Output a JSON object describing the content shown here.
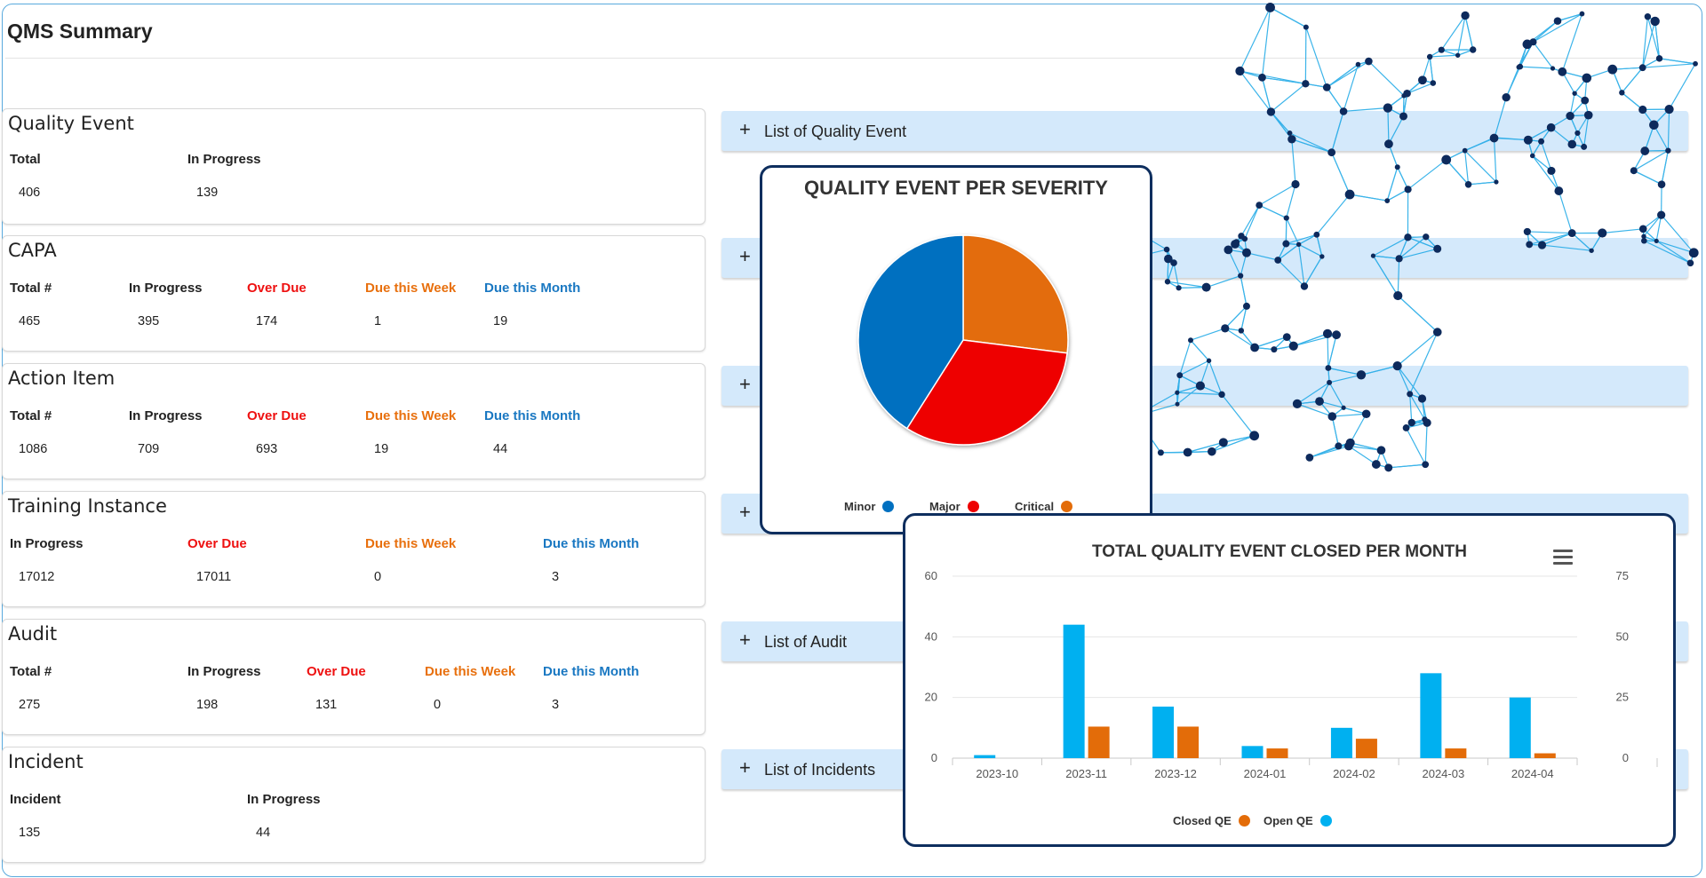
{
  "page": {
    "title": "QMS Summary"
  },
  "cards": {
    "quality_event": {
      "title": "Quality Event",
      "columns": [
        {
          "label": "Total",
          "value": "406"
        },
        {
          "label": "In Progress",
          "value": "139"
        }
      ]
    },
    "capa": {
      "title": "CAPA",
      "columns": [
        {
          "label": "Total #",
          "value": "465"
        },
        {
          "label": "In Progress",
          "value": "395"
        },
        {
          "label": "Over Due",
          "value": "174"
        },
        {
          "label": "Due this Week",
          "value": "1"
        },
        {
          "label": "Due this Month",
          "value": "19"
        }
      ]
    },
    "action_item": {
      "title": "Action Item",
      "columns": [
        {
          "label": "Total #",
          "value": "1086"
        },
        {
          "label": "In Progress",
          "value": "709"
        },
        {
          "label": "Over Due",
          "value": "693"
        },
        {
          "label": "Due this Week",
          "value": "19"
        },
        {
          "label": "Due this Month",
          "value": "44"
        }
      ]
    },
    "training": {
      "title": "Training Instance",
      "columns": [
        {
          "label": "In Progress",
          "value": "17012"
        },
        {
          "label": "Over Due",
          "value": "17011"
        },
        {
          "label": "Due this Week",
          "value": "0"
        },
        {
          "label": "Due this Month",
          "value": "3"
        }
      ]
    },
    "audit": {
      "title": "Audit",
      "columns": [
        {
          "label": "Total #",
          "value": "275"
        },
        {
          "label": "In Progress",
          "value": "198"
        },
        {
          "label": "Over Due",
          "value": "131"
        },
        {
          "label": "Due this Week",
          "value": "0"
        },
        {
          "label": "Due this Month",
          "value": "3"
        }
      ]
    },
    "incident": {
      "title": "Incident",
      "columns": [
        {
          "label": "Incident",
          "value": "135"
        },
        {
          "label": "In Progress",
          "value": "44"
        }
      ]
    }
  },
  "accordions": [
    {
      "label": "List of Quality Event"
    },
    {
      "label": ""
    },
    {
      "label": ""
    },
    {
      "label": ""
    },
    {
      "label": "List of Audit"
    },
    {
      "label": "List of Incidents"
    }
  ],
  "accordion_icon": "plus-icon",
  "header_colors": {
    "over_due": "#ee1111",
    "due_week": "#e8700e",
    "due_month": "#1a78c2"
  },
  "chart_data": [
    {
      "type": "pie",
      "title": "QUALITY EVENT PER SEVERITY",
      "slices": [
        {
          "name": "Minor",
          "value": 41,
          "color": "#0070c0"
        },
        {
          "name": "Major",
          "value": 32,
          "color": "#ee0000"
        },
        {
          "name": "Critical",
          "value": 27,
          "color": "#e36c09"
        }
      ],
      "legend_position": "bottom"
    },
    {
      "type": "bar",
      "title": "TOTAL QUALITY EVENT CLOSED PER MONTH",
      "categories": [
        "2023-10",
        "2023-11",
        "2023-12",
        "2024-01",
        "2024-02",
        "2024-03",
        "2024-04"
      ],
      "series": [
        {
          "name": "Open QE",
          "values": [
            1,
            44,
            17,
            4,
            10,
            28,
            20
          ],
          "color": "#00b0f0",
          "axis": "left"
        },
        {
          "name": "Closed QE",
          "values": [
            0,
            13,
            13,
            4,
            8,
            4,
            2
          ],
          "color": "#e36c09",
          "axis": "right"
        }
      ],
      "legend_order": [
        "Closed QE",
        "Open QE"
      ],
      "left_axis": {
        "ticks": [
          "0",
          "20",
          "40",
          "60"
        ],
        "ylim": [
          0,
          60
        ]
      },
      "right_axis": {
        "ticks": [
          "0",
          "25",
          "50",
          "75"
        ],
        "ylim": [
          0,
          75
        ]
      },
      "grid": true,
      "legend_position": "bottom",
      "menu_icon": "hamburger-menu-icon"
    }
  ]
}
